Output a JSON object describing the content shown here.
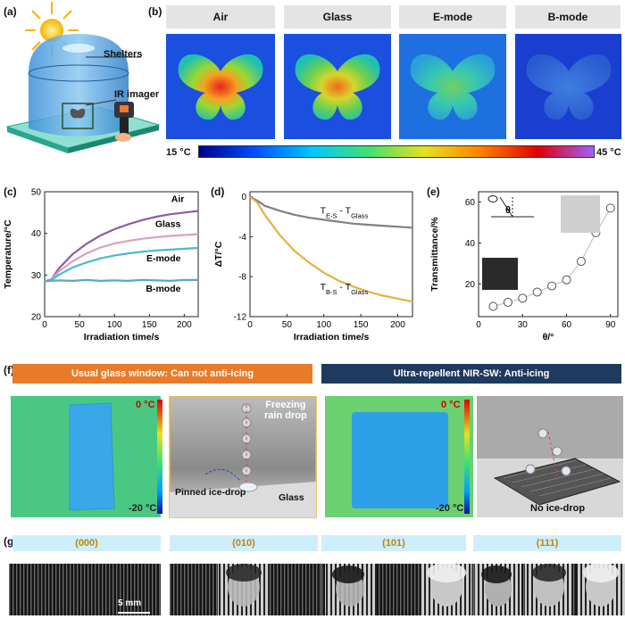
{
  "panels": {
    "a": {
      "label": "(a)",
      "shelters": "Shelters",
      "imager": "IR imager"
    },
    "b": {
      "label": "(b)",
      "headers": [
        "Air",
        "Glass",
        "E-mode",
        "B-mode"
      ],
      "scale_min": "15 °C",
      "scale_max": "45 °C"
    },
    "c": {
      "label": "(c)"
    },
    "d": {
      "label": "(d)"
    },
    "e": {
      "label": "(e)"
    },
    "f": {
      "label": "(f)",
      "left_banner": "Usual glass window: Can not anti-icing",
      "right_banner": "Ultra-repellent NIR-SW: Anti-icing",
      "t_hi": "0 °C",
      "t_lo": "-20 °C",
      "freezing": "Freezing\nrain drop",
      "pinned": "Pinned ice-drop",
      "glass": "Glass",
      "noice": "No ice-drop",
      "colors": {
        "left": "#e87b2a",
        "right": "#1f3a5f"
      }
    },
    "g": {
      "label": "(g)",
      "headers": [
        "(000)",
        "(010)",
        "(101)",
        "(111)"
      ],
      "scalebar": "5 mm"
    }
  },
  "chart_data": [
    {
      "type": "line",
      "title": "",
      "xlabel": "Irradiation time/s",
      "ylabel": "Temperature/°C",
      "xlim": [
        0,
        220
      ],
      "ylim": [
        20,
        50
      ],
      "xticks": [
        0,
        50,
        100,
        150,
        200
      ],
      "yticks": [
        20,
        30,
        40,
        50
      ],
      "series": [
        {
          "name": "Air",
          "color": "#8e5aa8",
          "x": [
            0,
            10,
            20,
            40,
            60,
            80,
            100,
            120,
            140,
            160,
            180,
            200,
            220
          ],
          "values": [
            28.5,
            29,
            31.5,
            35,
            37.5,
            39.5,
            41,
            42.2,
            43.2,
            44,
            44.6,
            45,
            45.4
          ]
        },
        {
          "name": "Glass",
          "color": "#d9a0c0",
          "x": [
            0,
            10,
            20,
            40,
            60,
            80,
            100,
            120,
            140,
            160,
            180,
            200,
            220
          ],
          "values": [
            28.5,
            29,
            30.8,
            33.3,
            35.2,
            36.6,
            37.6,
            38.2,
            38.7,
            39.1,
            39.4,
            39.6,
            39.8
          ]
        },
        {
          "name": "E-mode",
          "color": "#4bb8d0",
          "x": [
            0,
            10,
            20,
            40,
            60,
            80,
            100,
            120,
            140,
            160,
            180,
            200,
            220
          ],
          "values": [
            28.5,
            28.8,
            30,
            31.8,
            33,
            34,
            34.7,
            35.2,
            35.6,
            35.9,
            36.1,
            36.3,
            36.5
          ]
        },
        {
          "name": "B-mode",
          "color": "#5aa7c8",
          "x": [
            0,
            20,
            40,
            60,
            80,
            100,
            120,
            140,
            160,
            180,
            200,
            220
          ],
          "values": [
            28.5,
            28.7,
            28.6,
            28.8,
            28.6,
            28.7,
            28.6,
            28.8,
            28.7,
            28.6,
            28.8,
            28.8
          ]
        }
      ],
      "labels": [
        "Air",
        "Glass",
        "E-mode",
        "B-mode"
      ]
    },
    {
      "type": "line",
      "title": "",
      "xlabel": "Irradiation time/s",
      "ylabel": "ΔT/°C",
      "xlim": [
        0,
        220
      ],
      "ylim": [
        -12,
        0.5
      ],
      "xticks": [
        0,
        50,
        100,
        150,
        200
      ],
      "yticks": [
        0,
        -4,
        -8,
        -12
      ],
      "series": [
        {
          "name": "T_E-S - T_Glass",
          "color": "#808080",
          "x": [
            0,
            10,
            20,
            40,
            60,
            80,
            100,
            120,
            140,
            160,
            180,
            200,
            220
          ],
          "values": [
            0,
            -0.4,
            -0.9,
            -1.4,
            -1.8,
            -2.1,
            -2.3,
            -2.5,
            -2.7,
            -2.8,
            -2.9,
            -3.0,
            -3.1
          ]
        },
        {
          "name": "T_B-S - T_Glass",
          "color": "#e3b23c",
          "x": [
            0,
            10,
            20,
            40,
            60,
            80,
            100,
            120,
            140,
            160,
            180,
            200,
            220
          ],
          "values": [
            0,
            -0.6,
            -1.8,
            -3.8,
            -5.4,
            -6.6,
            -7.6,
            -8.4,
            -9.0,
            -9.5,
            -9.9,
            -10.2,
            -10.5
          ]
        }
      ],
      "labels": [
        {
          "main": "T",
          "sub1": "E-S",
          "mid": " - T",
          "sub2": "Glass"
        },
        {
          "main": "T",
          "sub1": "B-S",
          "mid": " - T",
          "sub2": "Glass"
        }
      ]
    },
    {
      "type": "scatter",
      "title": "",
      "xlabel": "θ/°",
      "ylabel": "Transmittance/%",
      "xlim": [
        0,
        95
      ],
      "ylim": [
        4,
        65
      ],
      "xticks": [
        0,
        30,
        60,
        90
      ],
      "yticks": [
        20,
        40,
        60
      ],
      "x": [
        10,
        20,
        30,
        40,
        50,
        60,
        70,
        80,
        90
      ],
      "values": [
        9,
        11,
        13,
        16,
        19,
        22,
        31,
        45,
        57
      ],
      "theta_label": "θ"
    }
  ]
}
